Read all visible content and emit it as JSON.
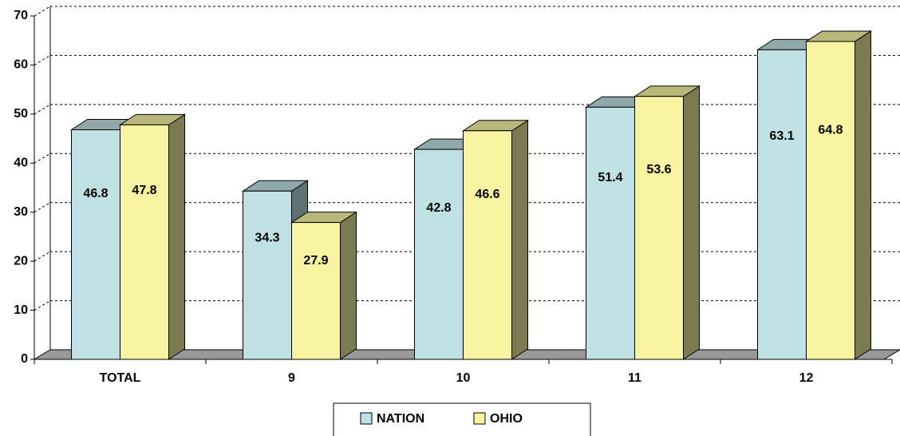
{
  "chart_data": {
    "type": "bar3d",
    "categories": [
      "TOTAL",
      "9",
      "10",
      "11",
      "12"
    ],
    "series": [
      {
        "name": "NATION",
        "color": "#bfe1e3",
        "values": [
          46.8,
          34.3,
          42.8,
          51.4,
          63.1
        ]
      },
      {
        "name": "OHIO",
        "color": "#f8f4a2",
        "values": [
          47.8,
          27.9,
          46.6,
          53.6,
          64.8
        ]
      }
    ],
    "ylim": [
      0,
      70
    ],
    "yticks": [
      0,
      10,
      20,
      30,
      40,
      50,
      60,
      70
    ],
    "grid": true,
    "legend": "bottom"
  }
}
